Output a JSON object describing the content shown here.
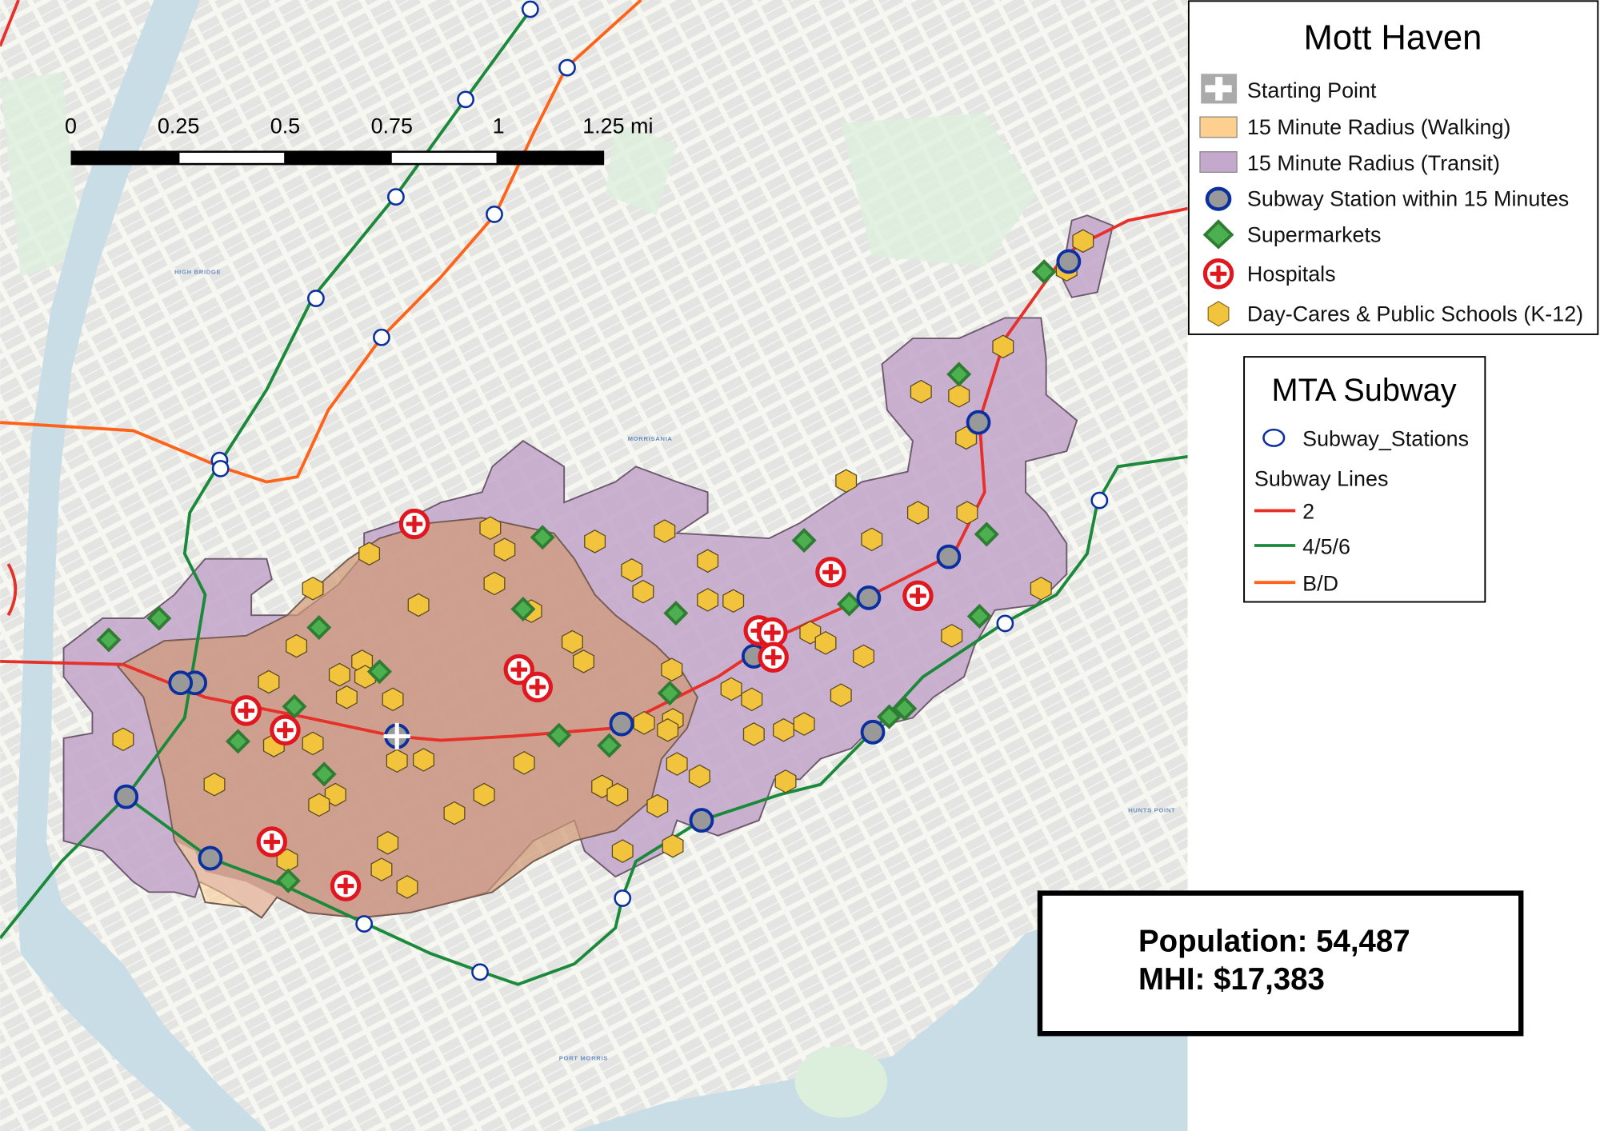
{
  "legend": {
    "title": "Mott Haven",
    "items": [
      {
        "label": "Starting Point",
        "icon": "plus-square-icon",
        "color": "#aaaaaa"
      },
      {
        "label": "15 Minute Radius (Walking)",
        "icon": "area-swatch",
        "color": "#ffcf8f"
      },
      {
        "label": "15 Minute Radius (Transit)",
        "icon": "area-swatch",
        "color": "#c5a9cc"
      },
      {
        "label": "Subway Station within 15 Minutes",
        "icon": "circle-ring-icon",
        "color": "#1f3fa0"
      },
      {
        "label": "Supermarkets",
        "icon": "diamond-icon",
        "color": "#4caf50"
      },
      {
        "label": "Hospitals",
        "icon": "hospital-cross-icon",
        "color": "#e0171f"
      },
      {
        "label": "Day-Cares & Public Schools (K-12)",
        "icon": "hexagon-icon",
        "color": "#f2c33c"
      }
    ]
  },
  "subway_legend": {
    "title": "MTA Subway",
    "stations_label": "Subway_Stations",
    "lines_heading": "Subway Lines",
    "lines": [
      {
        "label": "2",
        "color": "#e8302a"
      },
      {
        "label": "4/5/6",
        "color": "#1a8a3a"
      },
      {
        "label": "B/D",
        "color": "#ff6319"
      }
    ]
  },
  "scale_bar": {
    "ticks": [
      "0",
      "0.25",
      "0.5",
      "0.75",
      "1",
      "1.25 mi"
    ]
  },
  "info": {
    "population": "Population: 54,487",
    "mhi": "MHI: $17,383"
  },
  "map_labels": [
    "MORRISANIA",
    "PORT MORRIS",
    "HUNTS POINT",
    "HIGH BRIDGE"
  ]
}
